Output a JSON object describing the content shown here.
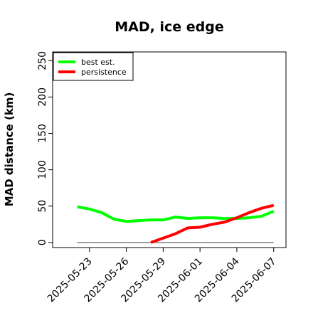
{
  "chart_data": {
    "type": "line",
    "title": "MAD, ice edge",
    "xlabel": "",
    "ylabel": "MAD distance (km)",
    "ylim": [
      -7,
      262
    ],
    "yticks": [
      0,
      50,
      100,
      150,
      200,
      250
    ],
    "xlim": [
      "2025-05-20",
      "2025-06-08"
    ],
    "xticks": [
      "2025-05-23",
      "2025-05-26",
      "2025-05-29",
      "2025-06-01",
      "2025-06-04",
      "2025-06-07"
    ],
    "grid": false,
    "legend_position": "top-left",
    "reference_line": {
      "y": 0,
      "x_start": "2025-05-22",
      "x_end": "2025-06-07",
      "color": "#808080"
    },
    "series": [
      {
        "name": "best est.",
        "color": "#00ff00",
        "x": [
          "2025-05-22",
          "2025-05-23",
          "2025-05-24",
          "2025-05-25",
          "2025-05-26",
          "2025-05-27",
          "2025-05-28",
          "2025-05-29",
          "2025-05-30",
          "2025-05-31",
          "2025-06-01",
          "2025-06-02",
          "2025-06-03",
          "2025-06-04",
          "2025-06-05",
          "2025-06-06",
          "2025-06-07"
        ],
        "y": [
          49,
          46,
          41,
          32,
          29,
          30,
          31,
          31,
          35,
          33,
          34,
          34,
          33,
          33,
          34,
          36,
          43
        ]
      },
      {
        "name": "persistence",
        "color": "#ff0000",
        "x": [
          "2025-05-28",
          "2025-05-29",
          "2025-05-30",
          "2025-05-31",
          "2025-06-01",
          "2025-06-02",
          "2025-06-03",
          "2025-06-04",
          "2025-06-05",
          "2025-06-06",
          "2025-06-07"
        ],
        "y": [
          0,
          6,
          12,
          20,
          21,
          25,
          28,
          34,
          41,
          47,
          51
        ]
      }
    ]
  }
}
